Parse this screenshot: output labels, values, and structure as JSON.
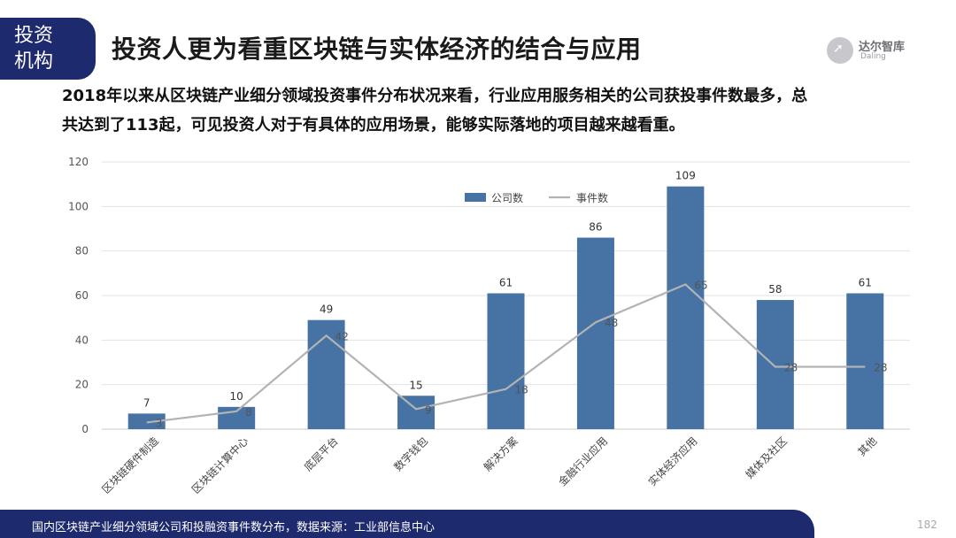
{
  "header": {
    "tag_line1": "投资",
    "tag_line2": "机构",
    "title": "投资人更为看重区块链与实体经济的结合与应用"
  },
  "logo": {
    "name": "达尔智库",
    "sub": "Daling",
    "icon_name": "rocket-icon"
  },
  "description": {
    "line1": "2018年以来从区块链产业细分领域投资事件分布状况来看，行业应用服务相关的公司获投事件数最多，总",
    "line2": "共达到了113起，可见投资人对于有具体的应用场景，能够实际落地的项目越来越看重。"
  },
  "chart_data": {
    "type": "bar",
    "categories": [
      "区块链硬件制造",
      "区块链计算中心",
      "底层平台",
      "数字钱包",
      "解决方案",
      "金融行业应用",
      "实体经济应用",
      "媒体及社区",
      "其他"
    ],
    "series": [
      {
        "name": "公司数",
        "type": "bar",
        "values": [
          7,
          10,
          49,
          15,
          61,
          86,
          109,
          58,
          61
        ],
        "color": "#4672a4"
      },
      {
        "name": "事件数",
        "type": "line",
        "values": [
          3,
          8,
          42,
          9,
          18,
          48,
          65,
          28,
          28
        ],
        "color": "#b3b3b3"
      }
    ],
    "yticks": [
      0,
      20,
      40,
      60,
      80,
      100,
      120
    ],
    "ylim": [
      0,
      120
    ],
    "legend": "top-center",
    "grid": true
  },
  "footer": {
    "caption": "国内区块链产业细分领域公司和投融资事件数分布，数据来源：工业部信息中心"
  },
  "page_number": "182"
}
